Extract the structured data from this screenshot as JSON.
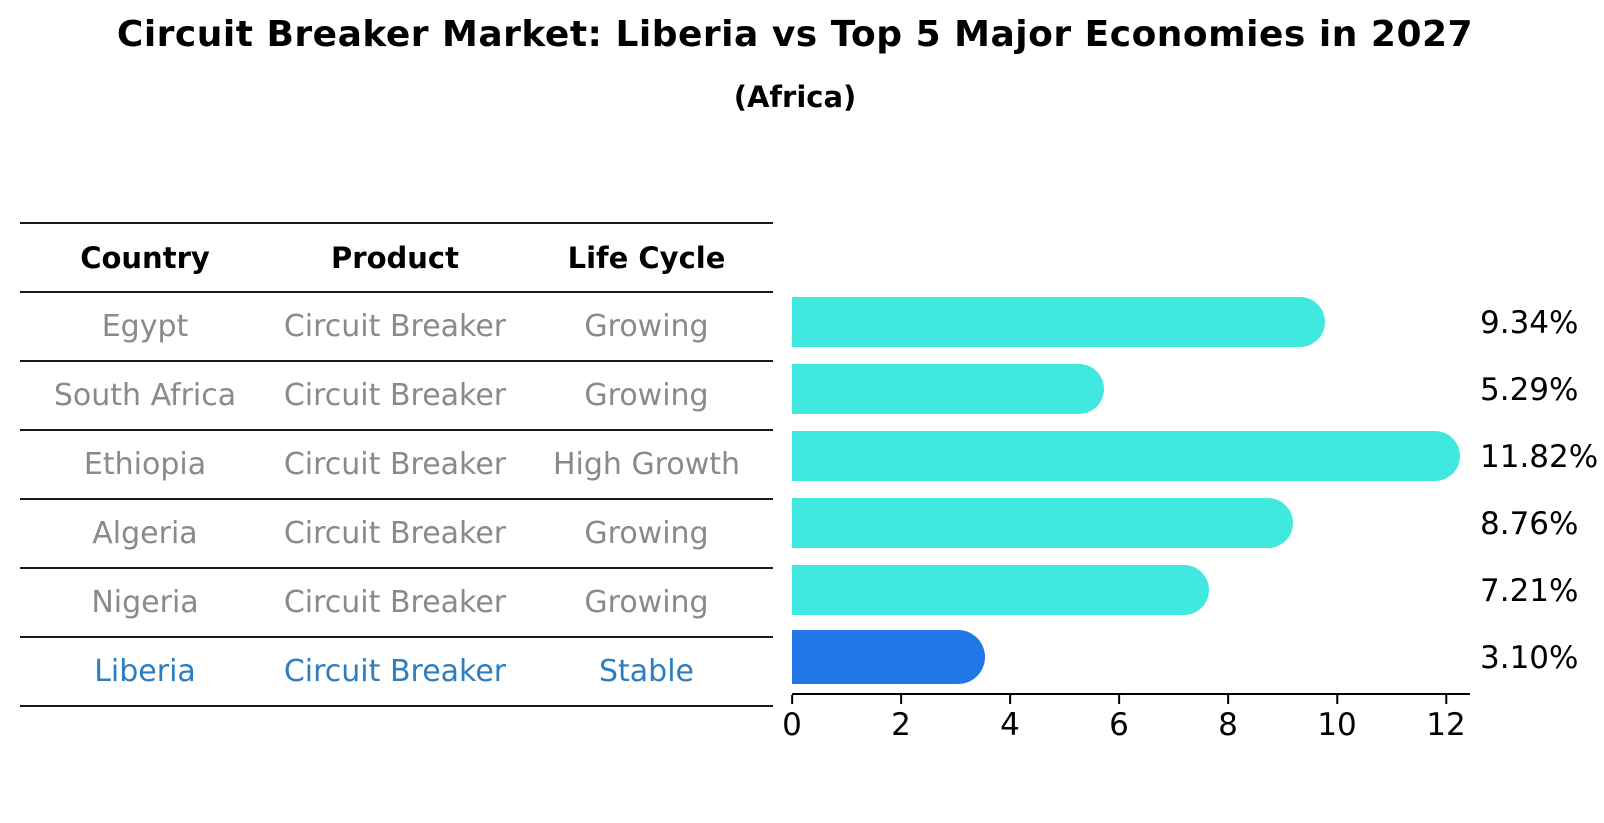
{
  "header": {
    "title": "Circuit Breaker Market: Liberia vs Top 5 Major Economies in 2027",
    "subtitle": "(Africa)"
  },
  "table": {
    "columns": [
      "Country",
      "Product",
      "Life Cycle"
    ],
    "rows": [
      {
        "country": "Egypt",
        "product": "Circuit Breaker",
        "life_cycle": "Growing",
        "highlight": false
      },
      {
        "country": "South Africa",
        "product": "Circuit Breaker",
        "life_cycle": "Growing",
        "highlight": false
      },
      {
        "country": "Ethiopia",
        "product": "Circuit Breaker",
        "life_cycle": "High Growth",
        "highlight": false
      },
      {
        "country": "Algeria",
        "product": "Circuit Breaker",
        "life_cycle": "Growing",
        "highlight": false
      },
      {
        "country": "Nigeria",
        "product": "Circuit Breaker",
        "life_cycle": "Growing",
        "highlight": false
      },
      {
        "country": "Liberia",
        "product": "Circuit Breaker",
        "life_cycle": "Stable",
        "highlight": true
      }
    ]
  },
  "chart_data": {
    "type": "bar",
    "orientation": "horizontal",
    "title": "Circuit Breaker Market: Liberia vs Top 5 Major Economies in 2027 (Africa)",
    "categories": [
      "Egypt",
      "South Africa",
      "Ethiopia",
      "Algeria",
      "Nigeria",
      "Liberia"
    ],
    "values": [
      9.34,
      5.29,
      11.82,
      8.76,
      7.21,
      3.1
    ],
    "value_labels": [
      "9.34%",
      "5.29%",
      "11.82%",
      "8.76%",
      "7.21%",
      "3.10%"
    ],
    "xlim": [
      0,
      12
    ],
    "xticks": [
      0,
      2,
      4,
      6,
      8,
      10,
      12
    ],
    "grid": false,
    "legend": false,
    "bar_color": "#40E8E0",
    "highlight_bar_color": "#2277E8",
    "highlight_index": 5
  },
  "colors": {
    "muted_text": "#8A8A8A",
    "highlight_text": "#2E7EBF",
    "axis": "#000000"
  }
}
